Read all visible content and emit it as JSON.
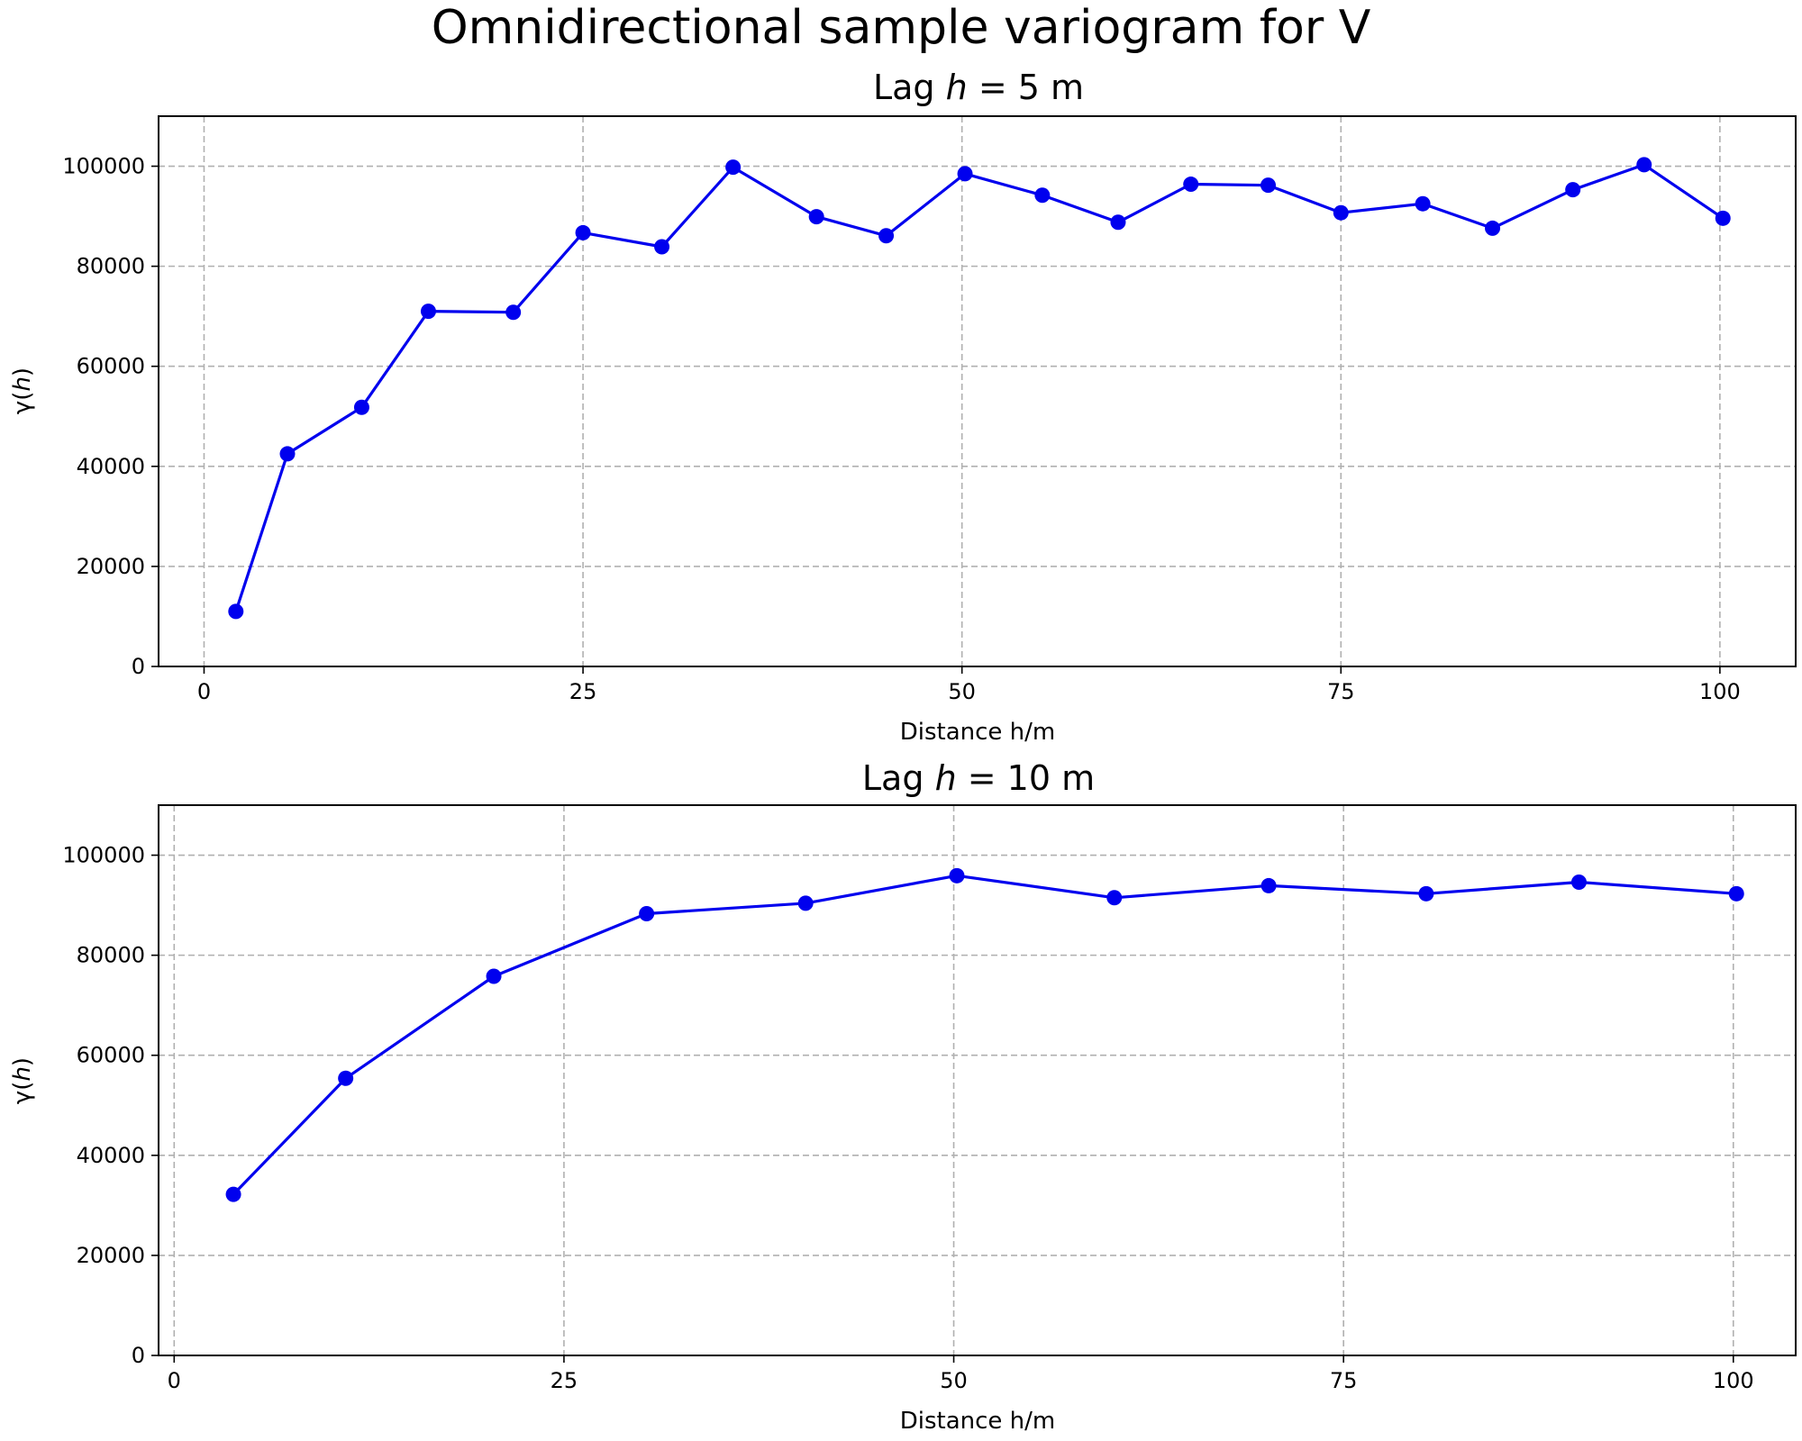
{
  "figure": {
    "title": "Omnidirectional sample variogram for V"
  },
  "colors": {
    "series": "#0000ee",
    "grid": "#b0b0b0",
    "axes": "#000000",
    "background": "#ffffff"
  },
  "chart_data": [
    {
      "type": "line",
      "title_prefix": "Lag ",
      "title_var": "h",
      "title_suffix": " = 5 m",
      "xlabel": "Distance h/m",
      "ylabel_prefix": "γ(",
      "ylabel_var": "h",
      "ylabel_suffix": ")",
      "xlim": [
        -3,
        105
      ],
      "ylim": [
        0,
        110000
      ],
      "xticks": [
        0,
        25,
        50,
        75,
        100
      ],
      "yticks": [
        0,
        20000,
        40000,
        60000,
        80000,
        100000
      ],
      "grid": true,
      "series": [
        {
          "x": [
            2.1,
            5.5,
            10.4,
            14.8,
            20.4,
            25.0,
            30.2,
            34.9,
            40.4,
            45.0,
            50.2,
            55.3,
            60.3,
            65.1,
            70.2,
            75.0,
            80.4,
            85.0,
            90.3,
            95.0,
            100.2
          ],
          "y": [
            11000,
            42500,
            51800,
            71000,
            70800,
            86700,
            83900,
            99800,
            89900,
            86100,
            98500,
            94200,
            88800,
            96400,
            96200,
            90700,
            92500,
            87600,
            95300,
            100300,
            89600
          ]
        }
      ]
    },
    {
      "type": "line",
      "title_prefix": "Lag ",
      "title_var": "h",
      "title_suffix": " = 10 m",
      "xlabel": "Distance h/m",
      "ylabel_prefix": "γ(",
      "ylabel_var": "h",
      "ylabel_suffix": ")",
      "xlim": [
        -1,
        104
      ],
      "ylim": [
        0,
        110000
      ],
      "xticks": [
        0,
        25,
        50,
        75,
        100
      ],
      "yticks": [
        0,
        20000,
        40000,
        60000,
        80000,
        100000
      ],
      "grid": true,
      "series": [
        {
          "x": [
            3.8,
            11.0,
            20.5,
            30.3,
            40.5,
            50.2,
            60.3,
            70.2,
            80.3,
            90.1,
            100.2
          ],
          "y": [
            32200,
            55400,
            75800,
            88300,
            90400,
            95900,
            91500,
            93900,
            92300,
            94600,
            92300
          ]
        }
      ]
    }
  ]
}
